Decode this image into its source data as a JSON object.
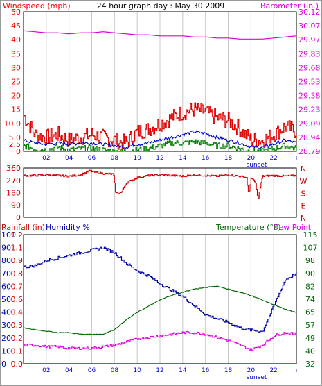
{
  "colors": {
    "windspeed": "#ff0000",
    "windgust": "#e00000",
    "windavg": "#0000cc",
    "windmin": "#008000",
    "barometer": "#e000e0",
    "direction": "#cc0000",
    "humidity": "#0000aa",
    "temperature": "#006600",
    "dewpoint": "#e000e0",
    "rainfall": "#cc0000",
    "grid": "#c8c8c8",
    "axis": "#000000"
  },
  "chart_data": [
    {
      "type": "line",
      "panel": "wind-barometer",
      "title": "24 hour graph day : May 30 2009",
      "left_axis_label": "Windspeed (mph)",
      "right_axis_label": "Barometer (in.)",
      "left_ticks": [
        "50",
        "45",
        "40",
        "35",
        "30",
        "25",
        "20",
        "15",
        "10.0",
        "5.0",
        "2.5",
        "0"
      ],
      "left_tick_values": [
        50,
        45,
        40,
        35,
        30,
        25,
        20,
        15,
        10,
        5,
        2.5,
        0
      ],
      "ylim_left": [
        0,
        50
      ],
      "right_ticks": [
        "30.12",
        "30.07",
        "29.97",
        "29.83",
        "29.68",
        "29.53",
        "29.38",
        "29.23",
        "29.09",
        "28.94",
        "28.79"
      ],
      "ylim_right": [
        28.79,
        30.12
      ],
      "x_ticks": [
        "02",
        "04",
        "06",
        "08",
        "10",
        "12",
        "14",
        "16",
        "18",
        "20",
        "22",
        "ı"
      ],
      "x_tick_hours": [
        2,
        4,
        6,
        8,
        10,
        12,
        14,
        16,
        18,
        20,
        22,
        24
      ],
      "xlim": [
        0,
        24
      ],
      "grid": true,
      "annotations": [
        "sunset"
      ],
      "sunset_hour": 20.5,
      "series": [
        {
          "key": "barometer",
          "axis": "right",
          "x": [
            0,
            1,
            2,
            3,
            4,
            5,
            6,
            7,
            8,
            9,
            10,
            11,
            12,
            13,
            14,
            15,
            16,
            17,
            18,
            19,
            20,
            21,
            22,
            23,
            24
          ],
          "y": [
            29.94,
            29.93,
            29.92,
            29.92,
            29.91,
            29.92,
            29.92,
            29.93,
            29.92,
            29.91,
            29.9,
            29.9,
            29.89,
            29.89,
            29.89,
            29.88,
            29.88,
            29.87,
            29.87,
            29.86,
            29.86,
            29.86,
            29.87,
            29.88,
            29.89
          ]
        },
        {
          "key": "windgust",
          "axis": "left",
          "x": [
            0,
            1,
            2,
            3,
            4,
            5,
            6,
            7,
            8,
            9,
            10,
            11,
            12,
            13,
            14,
            15,
            16,
            17,
            18,
            19,
            20,
            21,
            22,
            23,
            24
          ],
          "y": [
            13,
            6,
            5,
            6,
            4,
            5,
            6,
            5,
            4,
            3,
            7,
            8,
            10,
            12,
            14,
            15,
            14,
            12,
            11,
            8,
            4,
            4,
            6,
            9,
            7
          ]
        },
        {
          "key": "windavg",
          "axis": "left",
          "x": [
            0,
            1,
            2,
            3,
            4,
            5,
            6,
            7,
            8,
            9,
            10,
            11,
            12,
            13,
            14,
            15,
            16,
            17,
            18,
            19,
            20,
            21,
            22,
            23,
            24
          ],
          "y": [
            4,
            3,
            2.5,
            3,
            2.5,
            3,
            3,
            2.5,
            2,
            1.5,
            2.5,
            3,
            4,
            5,
            6,
            7,
            6.5,
            5,
            4,
            3,
            1.5,
            1.5,
            2.5,
            4,
            3
          ]
        },
        {
          "key": "windmin",
          "axis": "left",
          "x": [
            0,
            1,
            2,
            3,
            4,
            5,
            6,
            7,
            8,
            9,
            10,
            11,
            12,
            13,
            14,
            15,
            16,
            17,
            18,
            19,
            20,
            21,
            22,
            23,
            24
          ],
          "y": [
            2,
            1,
            0.5,
            1.5,
            0.5,
            1,
            1,
            0.5,
            0,
            0,
            0.5,
            1,
            2,
            3,
            3,
            3.5,
            3,
            2,
            2,
            1,
            0,
            0,
            1,
            2,
            1
          ]
        }
      ]
    },
    {
      "type": "line",
      "panel": "wind-direction",
      "left_ticks": [
        "360",
        "270",
        "180",
        "90",
        "0"
      ],
      "left_tick_values": [
        360,
        270,
        180,
        90,
        0
      ],
      "ylim": [
        0,
        360
      ],
      "right_labels": [
        "N",
        "W",
        "S",
        "E",
        "N"
      ],
      "series": [
        {
          "key": "direction",
          "x": [
            0,
            1,
            2,
            3,
            4,
            5,
            5.8,
            6.2,
            7,
            7.9,
            8.1,
            8.6,
            9,
            10,
            11,
            12,
            13,
            14,
            15,
            16,
            17,
            18,
            19,
            19.6,
            19.8,
            20,
            20.4,
            20.6,
            21,
            22,
            23,
            24
          ],
          "y": [
            305,
            305,
            310,
            305,
            300,
            310,
            340,
            330,
            320,
            315,
            175,
            180,
            250,
            290,
            305,
            310,
            305,
            300,
            310,
            305,
            300,
            310,
            300,
            290,
            160,
            290,
            250,
            130,
            300,
            305,
            300,
            305
          ]
        }
      ]
    },
    {
      "type": "line",
      "panel": "humidity-temperature",
      "left_axis_label_1": "Rainfall (in)",
      "left_axis_label_2": "Humidity %",
      "right_axis_label_1": "Temperature (°F)",
      "right_axis_label_2": "Dew Point",
      "humidity_ticks": [
        "100",
        "90",
        "80",
        "70",
        "60",
        "50",
        "40",
        "30",
        "20",
        "10",
        "0"
      ],
      "ylim_humidity": [
        0,
        100
      ],
      "rain_ticks": [
        "1.2",
        "1.1",
        "0.9",
        "0.8",
        "0.7",
        "0.6",
        "0.4",
        "0.3",
        "0.2",
        "0.1",
        "0.0"
      ],
      "ylim_rain": [
        0,
        1.2
      ],
      "temp_ticks": [
        "115",
        "107",
        "98",
        "90",
        "82",
        "74",
        "65",
        "57",
        "49",
        "40",
        "32"
      ],
      "ylim_temp": [
        32,
        115
      ],
      "series": [
        {
          "key": "humidity",
          "x": [
            0,
            1,
            2,
            3,
            4,
            5,
            6,
            7,
            8,
            9,
            10,
            11,
            12,
            13,
            14,
            15,
            16,
            17,
            18,
            19,
            20,
            21,
            22,
            23,
            24
          ],
          "y": [
            75,
            76,
            80,
            82,
            84,
            86,
            88,
            90,
            86,
            78,
            72,
            68,
            62,
            57,
            52,
            45,
            38,
            35,
            32,
            28,
            26,
            25,
            45,
            65,
            70
          ]
        },
        {
          "key": "temperature",
          "x": [
            0,
            1,
            2,
            3,
            4,
            5,
            6,
            7,
            8,
            9,
            10,
            11,
            12,
            13,
            14,
            15,
            16,
            17,
            18,
            19,
            20,
            21,
            22,
            23,
            24
          ],
          "y": [
            55,
            54,
            53,
            52,
            52,
            51,
            51,
            51,
            54,
            60,
            65,
            69,
            73,
            76,
            78,
            80,
            81,
            82,
            80,
            78,
            76,
            73,
            70,
            67,
            65
          ]
        },
        {
          "key": "dewpoint",
          "x": [
            0,
            1,
            2,
            3,
            4,
            5,
            6,
            7,
            8,
            9,
            10,
            11,
            12,
            13,
            14,
            15,
            16,
            17,
            18,
            19,
            20,
            21,
            22,
            23,
            24
          ],
          "y": [
            44,
            44,
            43,
            43,
            42,
            42,
            42,
            43,
            44,
            46,
            48,
            49,
            50,
            51,
            52,
            52,
            51,
            49,
            47,
            44,
            41,
            44,
            50,
            52,
            51
          ]
        },
        {
          "key": "rainfall",
          "x": [
            0,
            24
          ],
          "y": [
            0,
            0
          ]
        }
      ]
    }
  ]
}
